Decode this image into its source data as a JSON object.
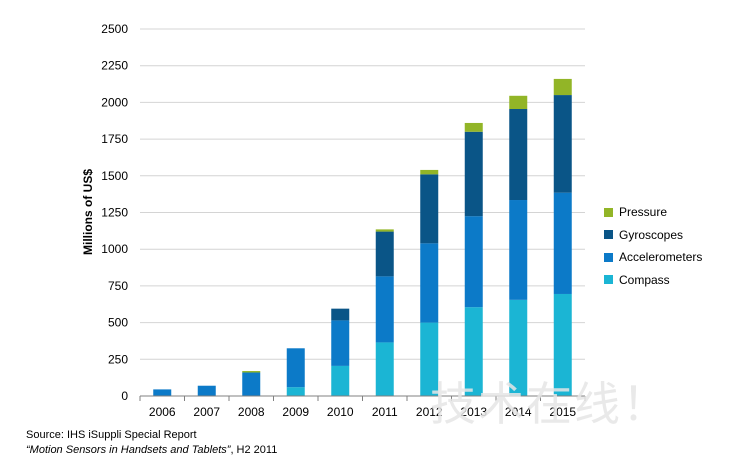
{
  "chart_data": {
    "type": "bar",
    "stacked": true,
    "categories": [
      "2006",
      "2007",
      "2008",
      "2009",
      "2010",
      "2011",
      "2012",
      "2013",
      "2014",
      "2015"
    ],
    "series": [
      {
        "name": "Compass",
        "color": "#1bb5d4",
        "values": [
          0,
          0,
          0,
          60,
          205,
          365,
          500,
          605,
          655,
          695
        ]
      },
      {
        "name": "Accelerometers",
        "color": "#0c7ac8",
        "values": [
          45,
          70,
          160,
          265,
          310,
          450,
          540,
          620,
          680,
          690
        ]
      },
      {
        "name": "Gyroscopes",
        "color": "#0a5587",
        "values": [
          0,
          0,
          0,
          0,
          80,
          305,
          470,
          575,
          620,
          665
        ]
      },
      {
        "name": "Pressure",
        "color": "#92b527",
        "values": [
          0,
          0,
          10,
          0,
          0,
          15,
          30,
          60,
          90,
          110
        ]
      }
    ],
    "ylabel": "Millions of US$",
    "ylim": [
      0,
      2500
    ],
    "yticks": [
      0,
      250,
      500,
      750,
      1000,
      1250,
      1500,
      1750,
      2000,
      2250,
      2500
    ],
    "grid": true,
    "legend_position": "right",
    "legend_order": [
      "Pressure",
      "Gyroscopes",
      "Accelerometers",
      "Compass"
    ]
  },
  "source": {
    "line1": "Source: IHS iSuppli Special Report",
    "line2_italic": "“Motion Sensors in Handsets and Tablets”",
    "line2_rest": ", H2 2011"
  },
  "watermark": "技术在线！"
}
